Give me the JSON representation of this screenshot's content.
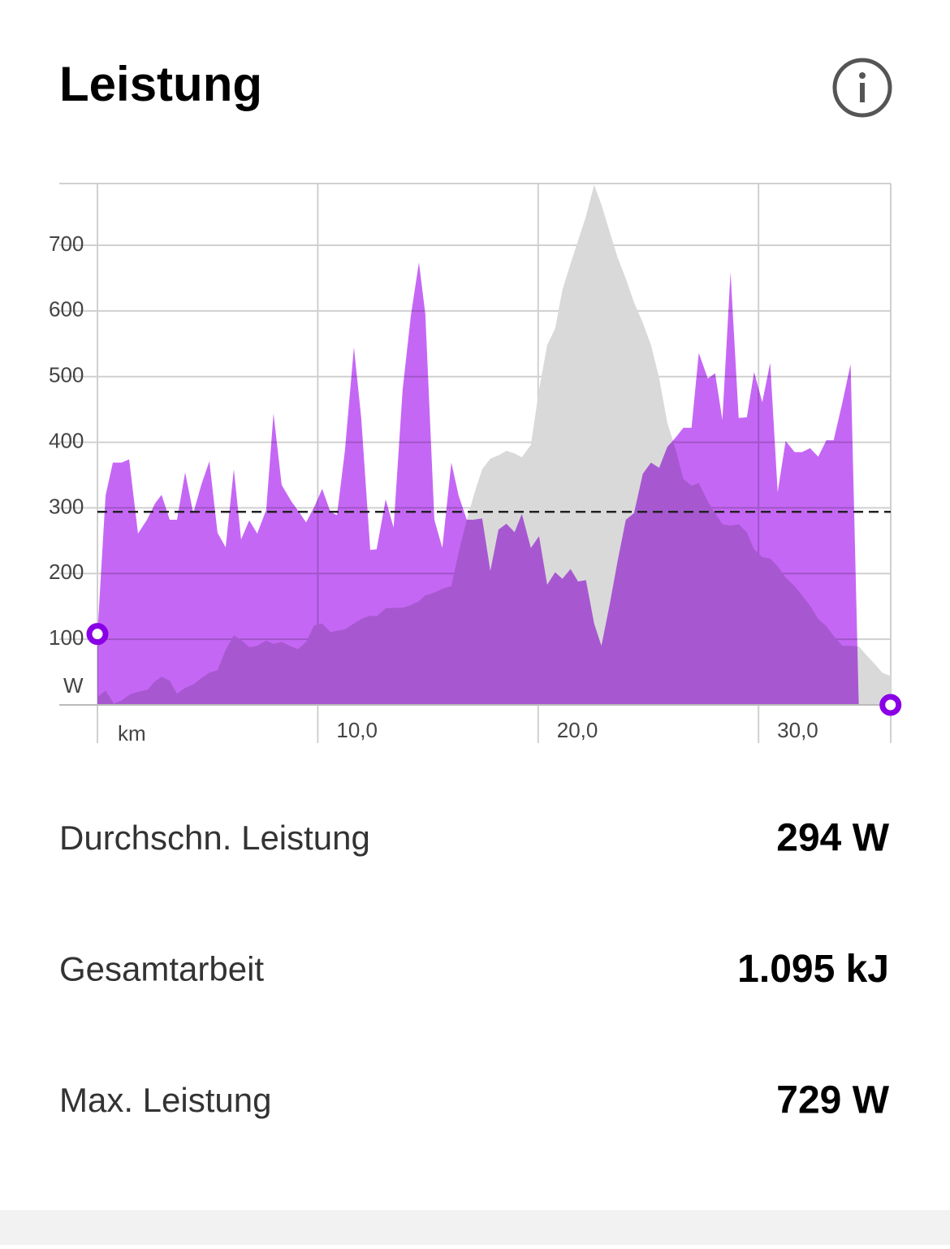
{
  "header": {
    "title": "Leistung"
  },
  "chart_data": {
    "type": "area",
    "x_label": "km",
    "y_label": "W",
    "xlim": [
      0,
      36
    ],
    "ylim": [
      0,
      794
    ],
    "xticks": [
      {
        "value": 10,
        "label": "10,0"
      },
      {
        "value": 20,
        "label": "20,0"
      },
      {
        "value": 30,
        "label": "30,0"
      }
    ],
    "yticks": [
      100,
      200,
      300,
      400,
      500,
      600,
      700
    ],
    "grid": true,
    "average_line": 294,
    "series": [
      {
        "color": "#d9d9d9",
        "x": [
          0,
          0.37,
          0.74,
          1.1,
          1.47,
          1.84,
          2.28,
          2.58,
          2.91,
          3.28,
          3.61,
          3.98,
          4.35,
          4.72,
          5.08,
          5.45,
          5.82,
          6.19,
          6.52,
          6.89,
          7.25,
          7.66,
          7.99,
          8.36,
          8.73,
          9.1,
          9.47,
          9.83,
          10.2,
          10.57,
          10.87,
          11.23,
          11.64,
          11.97,
          12.38,
          12.67,
          13.08,
          13.44,
          13.85,
          14.22,
          14.59,
          14.88,
          15.29,
          15.65,
          16.06,
          16.39,
          16.76,
          17.13,
          17.46,
          17.83,
          18.2,
          18.56,
          18.93,
          19.26,
          19.67,
          20.04,
          20.41,
          20.77,
          21.1,
          21.47,
          21.81,
          22.17,
          22.54,
          22.87,
          23.24,
          23.61,
          23.98,
          24.35,
          24.75,
          25.12,
          25.49,
          25.86,
          26.26,
          26.59,
          26.96,
          27.29,
          27.7,
          28.03,
          28.36,
          28.73,
          29.1,
          29.47,
          29.8,
          30.17,
          30.53,
          30.87,
          31.23,
          31.64,
          31.97,
          32.34,
          32.71,
          33.08,
          33.41,
          33.81,
          34.18,
          34.55,
          34.92,
          35.28,
          35.62,
          35.99
        ],
        "values": [
          12,
          22,
          2,
          7,
          16,
          20,
          23,
          35,
          43,
          37,
          17,
          26,
          31,
          41,
          49,
          53,
          84,
          106,
          99,
          88,
          90,
          98,
          93,
          96,
          90,
          85,
          96,
          121,
          124,
          111,
          113,
          115,
          124,
          131,
          136,
          135,
          147,
          148,
          148,
          152,
          158,
          167,
          171,
          177,
          181,
          232,
          282,
          325,
          359,
          375,
          380,
          387,
          383,
          377,
          396,
          480,
          548,
          573,
          632,
          672,
          707,
          744,
          792,
          762,
          721,
          681,
          649,
          613,
          582,
          548,
          498,
          430,
          387,
          344,
          334,
          338,
          310,
          292,
          275,
          273,
          275,
          263,
          237,
          225,
          223,
          211,
          194,
          181,
          167,
          151,
          131,
          120,
          105,
          90,
          90,
          89,
          75,
          62,
          49,
          44
        ]
      },
      {
        "color": "#c567f5",
        "x": [
          0,
          0.37,
          0.7,
          1.1,
          1.44,
          1.84,
          2.25,
          2.62,
          2.91,
          3.28,
          3.61,
          3.98,
          4.35,
          4.72,
          5.08,
          5.45,
          5.82,
          6.19,
          6.52,
          6.89,
          7.25,
          7.66,
          7.99,
          8.36,
          8.8,
          9.1,
          9.47,
          9.83,
          10.2,
          10.57,
          10.87,
          11.23,
          11.64,
          11.97,
          12.38,
          12.67,
          13.08,
          13.44,
          13.85,
          14.22,
          14.59,
          14.88,
          15.29,
          15.65,
          16.06,
          16.39,
          16.76,
          17.05,
          17.46,
          17.83,
          18.2,
          18.56,
          18.93,
          19.26,
          19.67,
          20.04,
          20.41,
          20.77,
          21.1,
          21.47,
          21.81,
          22.17,
          22.54,
          22.87,
          23.24,
          23.61,
          23.98,
          24.35,
          24.75,
          25.12,
          25.49,
          25.86,
          26.26,
          26.59,
          26.96,
          27.29,
          27.7,
          28.03,
          28.36,
          28.73,
          29.1,
          29.47,
          29.8,
          30.17,
          30.53,
          30.87,
          31.23,
          31.64,
          31.97,
          32.34,
          32.71,
          33.08,
          33.41,
          33.81,
          34.18,
          34.55,
          35.99
        ],
        "values": [
          108,
          319,
          369,
          369,
          374,
          261,
          282,
          307,
          320,
          282,
          282,
          354,
          292,
          336,
          371,
          262,
          240,
          359,
          252,
          281,
          261,
          297,
          444,
          335,
          310,
          296,
          278,
          301,
          329,
          294,
          289,
          387,
          545,
          437,
          236,
          237,
          313,
          270,
          480,
          592,
          674,
          595,
          282,
          239,
          369,
          319,
          282,
          282,
          284,
          204,
          267,
          276,
          263,
          291,
          239,
          257,
          183,
          202,
          192,
          207,
          188,
          190,
          124,
          90,
          152,
          220,
          282,
          292,
          352,
          369,
          361,
          393,
          408,
          422,
          422,
          536,
          497,
          505,
          434,
          659,
          437,
          438,
          507,
          461,
          521,
          324,
          402,
          385,
          385,
          391,
          378,
          403,
          403,
          461,
          519,
          0,
          0
        ]
      }
    ]
  },
  "stats": [
    {
      "label": "Durchschn. Leistung",
      "value": "294 W"
    },
    {
      "label": "Gesamtarbeit",
      "value": "1.095 kJ"
    },
    {
      "label": "Max. Leistung",
      "value": "729 W"
    }
  ]
}
